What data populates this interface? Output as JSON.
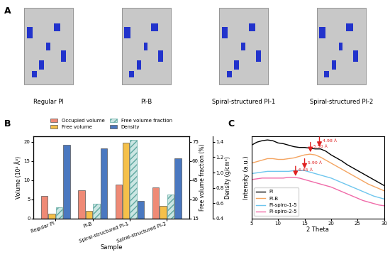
{
  "panel_labels": [
    "A",
    "B",
    "C"
  ],
  "images": {
    "captions": [
      "Regular PI",
      "PI-B",
      "Spiral-structured PI-1",
      "Spiral-structured PI-2"
    ]
  },
  "chart_data": [
    {
      "type": "bar",
      "x_label": "Sample",
      "y_label": "Volume (10⁴ Å³)",
      "y2_label": "Free volume fraction (%)",
      "y3_label": "Density (g/cm³)",
      "categories": [
        "Regular PI",
        "PI-B",
        "Spiral-structured PI-1",
        "Spiral-structured PI-2"
      ],
      "ylim": [
        0,
        21.5
      ],
      "yticks": [
        0,
        5,
        10,
        15,
        20
      ],
      "y2lim": [
        15,
        79.5
      ],
      "y2ticks": [
        15,
        30,
        45,
        60,
        75
      ],
      "y3lim": [
        0.4,
        1.475
      ],
      "y3ticks": [
        0.4,
        0.6,
        0.8,
        1.0,
        1.2,
        1.4
      ],
      "legend": "upper center",
      "grid": false,
      "series": [
        {
          "name": "Occupied volume",
          "color": "#ef8a76",
          "values": [
            5.8,
            7.3,
            8.8,
            8.1
          ]
        },
        {
          "name": "Free volume",
          "color": "#f5c04a",
          "values": [
            1.3,
            1.9,
            19.8,
            3.2
          ]
        },
        {
          "name": "Free volume fraction",
          "color": "#cbe6e3",
          "axis": "y2",
          "values": [
            24,
            26.4,
            76.5,
            34
          ]
        },
        {
          "name": "Density",
          "color": "#4a78c0",
          "axis": "y3",
          "values": [
            1.365,
            1.315,
            0.625,
            1.19
          ]
        }
      ]
    },
    {
      "type": "line",
      "x_label": "2 Theta",
      "y_label": "Intensity (a.u.)",
      "xlim": [
        5,
        30
      ],
      "xticks": [
        5,
        10,
        15,
        20,
        25,
        30
      ],
      "ylim": [
        -1,
        10
      ],
      "yticks": [],
      "tick_labels": "x",
      "legend": "lower left",
      "x": [
        5,
        6,
        7,
        8,
        9,
        10,
        11,
        12,
        13,
        14,
        15,
        16,
        17,
        18,
        19,
        20,
        21,
        22,
        23,
        24,
        25,
        26,
        27,
        28,
        29,
        30
      ],
      "series": [
        {
          "name": "PI",
          "color": "#000000",
          "values": [
            8.8,
            9.2,
            9.4,
            9.5,
            9.4,
            9.1,
            9.0,
            8.8,
            8.6,
            8.5,
            8.5,
            8.4,
            8.3,
            8.3,
            8.0,
            7.5,
            7.1,
            6.7,
            6.2,
            5.8,
            5.4,
            5.0,
            4.6,
            4.2,
            3.8,
            3.4
          ]
        },
        {
          "name": "PI-B",
          "color": "#f4a460",
          "values": [
            6.4,
            6.6,
            6.8,
            7.0,
            7.0,
            6.9,
            6.9,
            7.0,
            7.1,
            7.3,
            7.5,
            7.6,
            7.5,
            7.2,
            6.8,
            6.4,
            6.0,
            5.6,
            5.2,
            4.8,
            4.4,
            4.0,
            3.6,
            3.3,
            3.0,
            2.7
          ]
        },
        {
          "name": "PI-spiro-1-5",
          "color": "#6ec6ee",
          "values": [
            5.0,
            5.1,
            5.2,
            5.3,
            5.3,
            5.3,
            5.3,
            5.3,
            5.4,
            5.4,
            5.4,
            5.2,
            5.0,
            4.8,
            4.6,
            4.4,
            4.1,
            3.8,
            3.5,
            3.2,
            2.9,
            2.6,
            2.3,
            2.0,
            1.8,
            1.6
          ]
        },
        {
          "name": "PI-spiro-2-5",
          "color": "#f06aa8",
          "values": [
            4.2,
            4.3,
            4.4,
            4.4,
            4.4,
            4.4,
            4.4,
            4.5,
            4.5,
            4.4,
            4.2,
            4.0,
            3.8,
            3.6,
            3.4,
            3.2,
            2.9,
            2.6,
            2.3,
            2.0,
            1.7,
            1.4,
            1.2,
            1.0,
            0.8,
            0.7
          ]
        }
      ],
      "annotations": [
        {
          "text": "4.98 Å",
          "x": 17.8,
          "y": 8.3,
          "color": "#e02020"
        },
        {
          "text": "5.50 Å",
          "x": 16.1,
          "y": 7.6,
          "color": "#e02020"
        },
        {
          "text": "5.90 Å",
          "x": 15.0,
          "y": 5.4,
          "color": "#e02020"
        },
        {
          "text": "6.65 Å",
          "x": 13.3,
          "y": 4.4,
          "color": "#e02020"
        }
      ]
    }
  ]
}
